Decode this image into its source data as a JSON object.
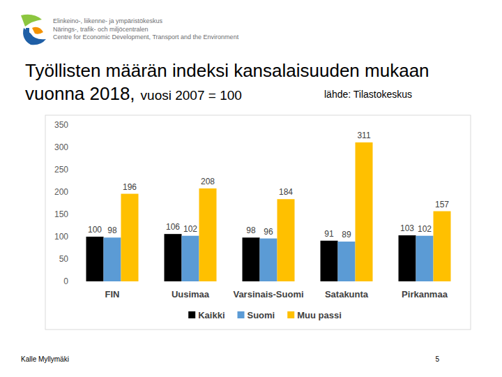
{
  "slide": {
    "logo_lines": [
      "Elinkeino-, liikenne- ja ympäristökeskus",
      "Närings-, trafik- och miljöcentralen",
      "Centre for Economic Development, Transport and the Environment"
    ],
    "title_lines": [
      "Työllisten määrän indeksi kansalaisuuden mukaan",
      "vuonna 2018,"
    ],
    "subtitle": "vuosi 2007 = 100",
    "source": "lähde: Tilastokeskus",
    "author": "Kalle Myllymäki",
    "page_number": 5
  },
  "chart_data": {
    "type": "bar",
    "categories": [
      "FIN",
      "Uusimaa",
      "Varsinais-Suomi",
      "Satakunta",
      "Pirkanmaa"
    ],
    "series": [
      {
        "name": "Kaikki",
        "color": "#000000",
        "values": [
          100,
          106,
          98,
          91,
          103
        ]
      },
      {
        "name": "Suomi",
        "color": "#5b9bd5",
        "values": [
          98,
          102,
          96,
          89,
          102
        ]
      },
      {
        "name": "Muu passi",
        "color": "#ffc000",
        "values": [
          196,
          208,
          184,
          311,
          157
        ]
      }
    ],
    "ylim": [
      0,
      350
    ],
    "yticks": [
      0,
      50,
      100,
      150,
      200,
      250,
      300,
      350
    ],
    "grid": false,
    "data_labels": true,
    "legend": "bottom"
  }
}
